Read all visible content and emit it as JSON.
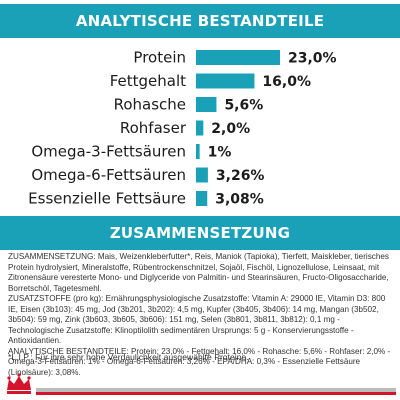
{
  "header": {
    "title": "ANALYTISCHE BESTANDTEILE"
  },
  "chart_data": {
    "type": "bar",
    "orientation": "horizontal",
    "title": "ANALYTISCHE BESTANDTEILE",
    "categories": [
      "Protein",
      "Fettgehalt",
      "Rohasche",
      "Rohfaser",
      "Omega-3-Fettsäuren",
      "Omega-6-Fettsäuren",
      "Essenzielle Fettsäure"
    ],
    "values": [
      23.0,
      16.0,
      5.6,
      2.0,
      1,
      3.26,
      3.08
    ],
    "labels": [
      "23,0%",
      "16,0%",
      "5,6%",
      "2,0%",
      "1%",
      "3,26%",
      "3,08%"
    ],
    "unit": "%",
    "xlim": [
      0,
      23.0
    ],
    "bar_color": "#1aa1b7",
    "grid": false,
    "legend": "none"
  },
  "section": {
    "title": "ZUSAMMENSETZUNG"
  },
  "composition": {
    "line1": "ZUSAMMENSETZUNG: Mais, Weizenkleberfutter*, Reis, Maniok (Tapioka), Tierfett, Maiskleber, tierisches Protein hydrolysiert, Mineralstoffe, Rübentrockenschnitzel, Sojaöl, Fischöl, Lignozellulose, Leinsaat, mit Zitronensäure veresterte Mono- und Diglyceride von Palmitin- und Stearinsäuren, Fructo-Oligosaccharide, Borretschöl, Tagetesmehl.",
    "line2": "ZUSATZSTOFFE (pro kg): Ernährungsphysiologische Zusatzstoffe: Vitamin A: 29000 IE, Vitamin D3: 800 IE, Eisen (3b103): 45 mg, Jod (3b201, 3b202): 4,5 mg, Kupfer (3b405, 3b406): 14 mg, Mangan (3b502, 3b504): 59 mg, Zink (3b603, 3b605, 3b606): 151 mg, Selen (3b801, 3b811, 3b812): 0,1 mg - Technologische Zusatzstoffe: Klinoptilolith sedimentären Ursprungs: 5 g - Konservierungsstoffe - Antioxidantien.",
    "line3": "ANALYTISCHE BESTANDTEILE: Protein: 23,0% - Fettgehalt: 16,0% - Rohasche: 5,6% - Rohfaser: 2,0% - Omega-3-Fettsäuren: 1% - Omega-6-Fettsäuren: 3,26% - EPA/DHA: 0,3% - Essenzielle Fettsäure (Linolsäure): 3,08%."
  },
  "footnote": {
    "text": "*L.I.P.: Für ihre sehr hohe Verdaulichkeit ausgewählte Proteine."
  },
  "brand": {
    "logo_icon": "crown-icon",
    "accent": "#d4142a",
    "stripe": "#bdbdbd",
    "banner_color": "#1aa1b7"
  }
}
